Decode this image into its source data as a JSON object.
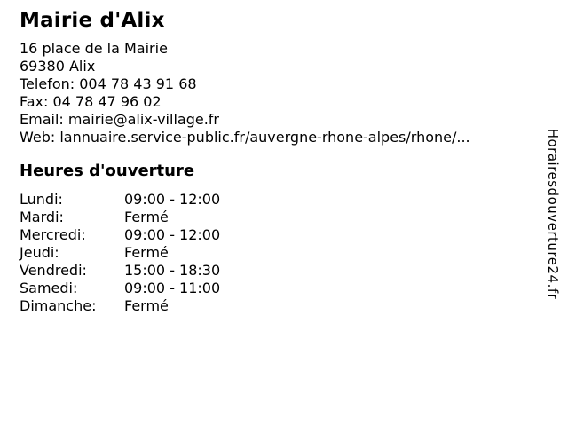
{
  "page": {
    "background": "#ffffff",
    "text_color": "#000000"
  },
  "header": {
    "title": "Mairie d'Alix"
  },
  "contact": {
    "lines": [
      "16 place de la Mairie",
      "69380 Alix",
      "Telefon: 004 78 43 91 68",
      "Fax: 04 78 47 96 02",
      "Email: mairie@alix-village.fr",
      "Web: lannuaire.service-public.fr/auvergne-rhone-alpes/rhone/..."
    ]
  },
  "hours": {
    "heading": "Heures d'ouverture",
    "rows": [
      {
        "day": "Lundi:",
        "time": "09:00 - 12:00"
      },
      {
        "day": "Mardi:",
        "time": "Fermé"
      },
      {
        "day": "Mercredi:",
        "time": "09:00 - 12:00"
      },
      {
        "day": "Jeudi:",
        "time": "Fermé"
      },
      {
        "day": "Vendredi:",
        "time": "15:00 - 18:30"
      },
      {
        "day": "Samedi:",
        "time": "09:00 - 11:00"
      },
      {
        "day": "Dimanche:",
        "time": "Fermé"
      }
    ]
  },
  "watermark": {
    "text": "Horairesdouverture24.fr"
  }
}
